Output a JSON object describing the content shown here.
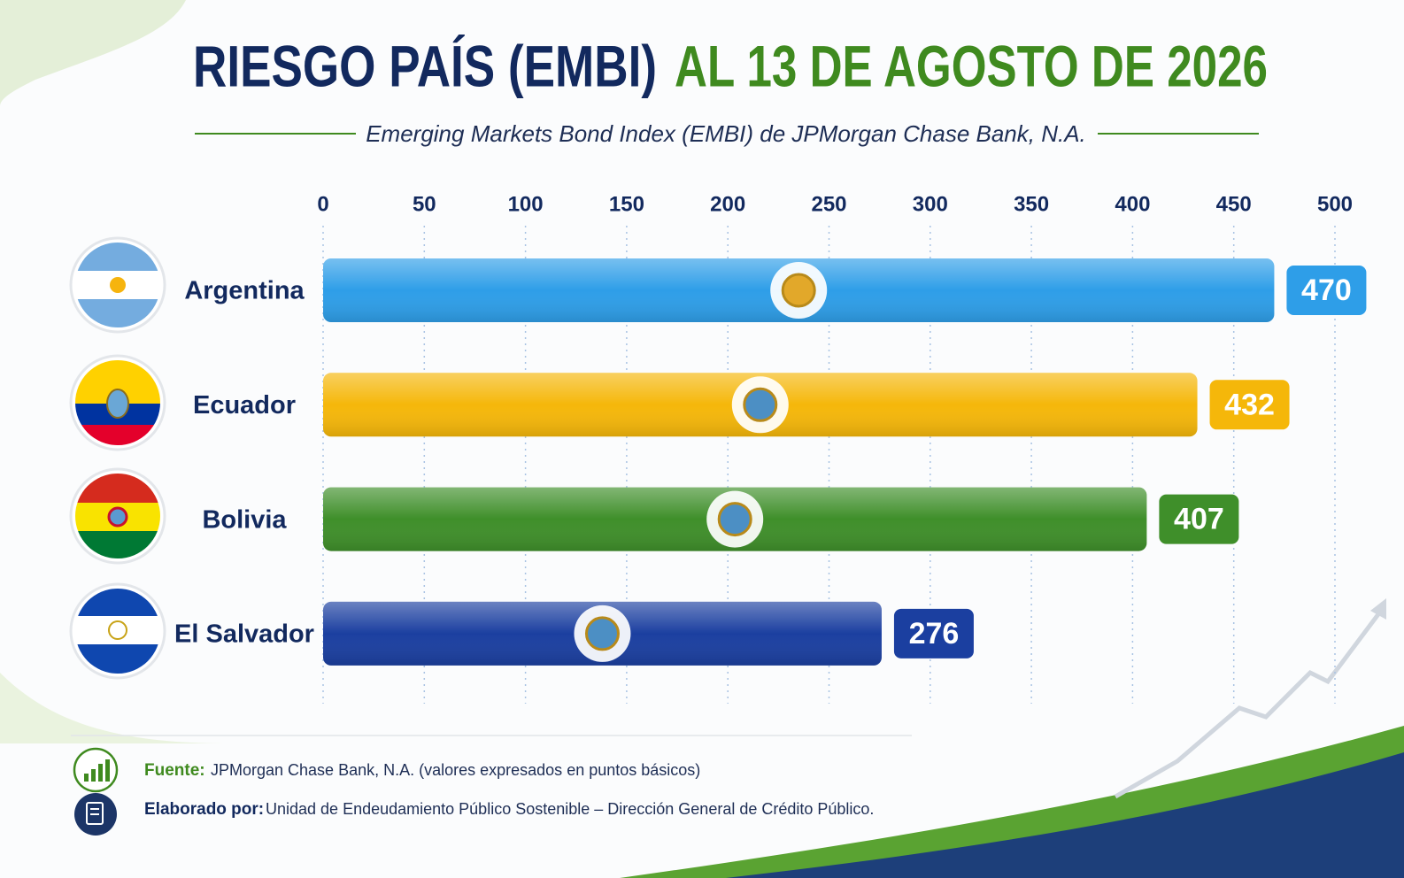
{
  "chart_data": {
    "type": "bar",
    "title": "RIESGO PAÍS (EMBI)",
    "title_highlight": "AL 13 DE AGOSTO DE 2026",
    "subtitle": "Emerging Markets Bond Index (EMBI) de JPMorgan Chase Bank, N.A.",
    "categories": [
      "Argentina",
      "Ecuador",
      "Bolivia",
      "El Salvador"
    ],
    "values": [
      470,
      432,
      407,
      276
    ],
    "colors": [
      "#2e9ee8",
      "#f5b70a",
      "#3f8f2a",
      "#1b3fa0"
    ],
    "orientation": "horizontal",
    "xlim": [
      0,
      500
    ],
    "xticks": [
      0,
      50,
      100,
      150,
      200,
      250,
      300,
      350,
      400,
      450,
      500
    ],
    "grid": true,
    "source_label": "Fuente:",
    "source": "JPMorgan Chase Bank, N.A. (valores expresados en puntos básicos)",
    "author_label": "Elaborado por:",
    "author": "Unidad de Endeudamiento Público Sostenible – Dirección General de Crédito Público."
  }
}
